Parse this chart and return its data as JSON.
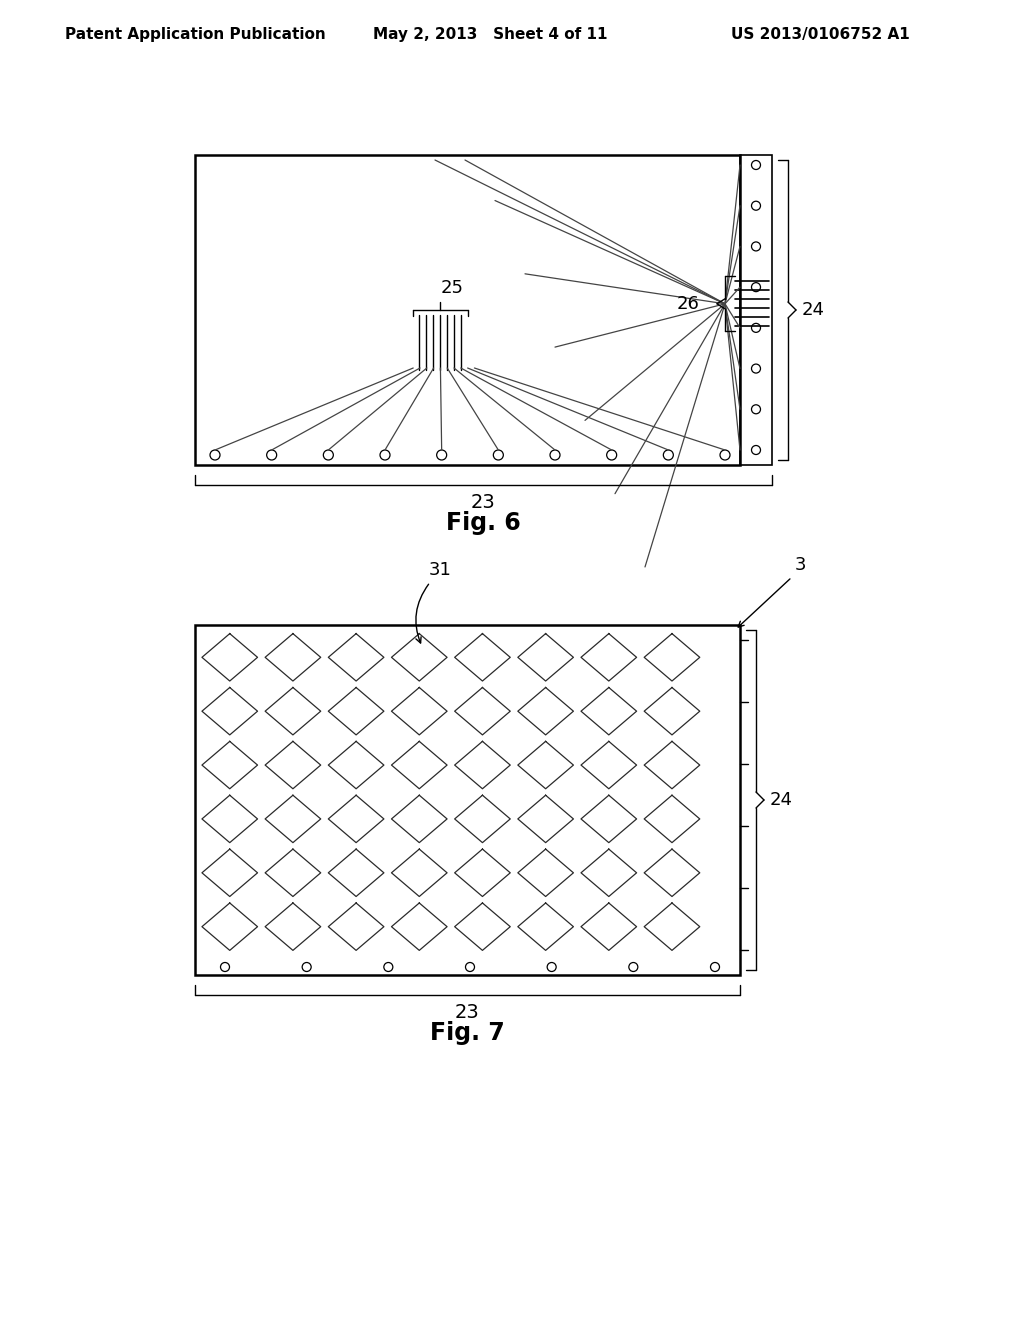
{
  "bg_color": "#ffffff",
  "line_color": "#000000",
  "dark_gray": "#444444",
  "header_left": "Patent Application Publication",
  "header_mid": "May 2, 2013   Sheet 4 of 11",
  "header_right": "US 2013/0106752 A1",
  "fig6_label": "Fig. 6",
  "fig7_label": "Fig. 7",
  "label_23": "23",
  "label_24": "24",
  "label_25": "25",
  "label_26": "26",
  "label_3": "3",
  "label_31": "31"
}
